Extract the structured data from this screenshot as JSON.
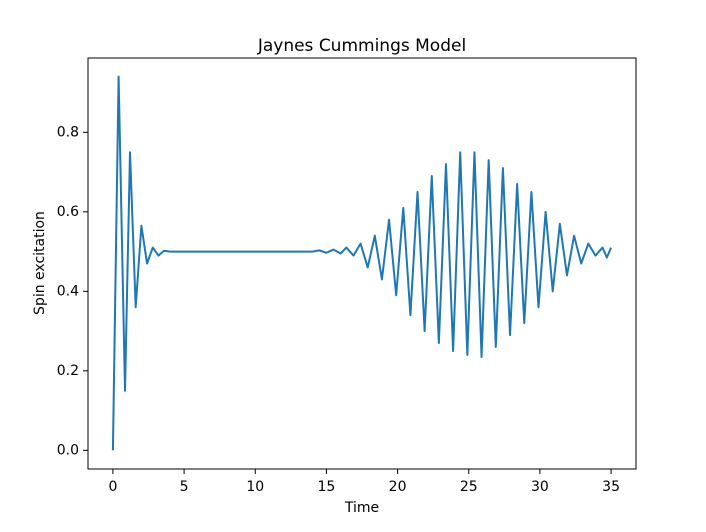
{
  "chart_data": {
    "type": "line",
    "title": "Jaynes Cummings Model",
    "xlabel": "Time",
    "ylabel": "Spin excitation",
    "color": "#1f77b4",
    "x": [
      0,
      0.4,
      0.85,
      1.2,
      1.6,
      2.0,
      2.4,
      2.8,
      3.2,
      3.6,
      4.0,
      14.0,
      14.5,
      15.0,
      15.5,
      16.0,
      16.4,
      16.9,
      17.4,
      17.9,
      18.4,
      18.9,
      19.4,
      19.9,
      20.4,
      20.9,
      21.4,
      21.9,
      22.4,
      22.9,
      23.4,
      23.9,
      24.4,
      24.9,
      25.4,
      25.9,
      26.4,
      26.9,
      27.4,
      27.9,
      28.4,
      28.9,
      29.4,
      29.9,
      30.4,
      30.9,
      31.4,
      31.9,
      32.4,
      32.9,
      33.4,
      33.9,
      34.4,
      34.7,
      35.0
    ],
    "values": [
      0,
      0.94,
      0.15,
      0.75,
      0.36,
      0.565,
      0.47,
      0.51,
      0.49,
      0.502,
      0.5,
      0.5,
      0.503,
      0.497,
      0.505,
      0.495,
      0.51,
      0.49,
      0.52,
      0.46,
      0.54,
      0.43,
      0.58,
      0.39,
      0.61,
      0.34,
      0.65,
      0.3,
      0.69,
      0.27,
      0.72,
      0.25,
      0.75,
      0.24,
      0.75,
      0.235,
      0.73,
      0.26,
      0.71,
      0.29,
      0.67,
      0.32,
      0.65,
      0.36,
      0.6,
      0.4,
      0.57,
      0.44,
      0.54,
      0.47,
      0.52,
      0.49,
      0.51,
      0.485,
      0.51
    ],
    "xlim": [
      -1.75,
      36.75
    ],
    "xticks": [
      0,
      5,
      10,
      15,
      20,
      25,
      30,
      35
    ],
    "ylim": [
      -0.047,
      0.987
    ],
    "yticks": [
      {
        "value": 0,
        "label": "0.0"
      },
      0.2,
      0.4,
      0.6,
      0.8
    ]
  }
}
